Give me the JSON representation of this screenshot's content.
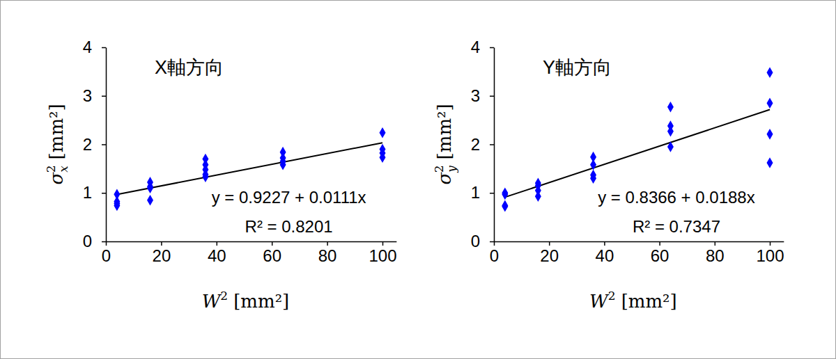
{
  "chart_data": [
    {
      "type": "scatter",
      "title": "X軸方向",
      "xlabel": {
        "symbol": "W",
        "sup": "2",
        "unit": "[mm²]"
      },
      "ylabel": {
        "symbol": "σ",
        "sub": "x",
        "sup": "2",
        "unit": "[mm²]"
      },
      "x": [
        4,
        4,
        4,
        4,
        16,
        16,
        16,
        16,
        36,
        36,
        36,
        36,
        36,
        64,
        64,
        64,
        64,
        100,
        100,
        100,
        100
      ],
      "series": [
        {
          "color": "#0000ff",
          "marker": "diamond",
          "values": [
            0.97,
            0.82,
            0.78,
            0.74,
            1.22,
            1.13,
            1.1,
            0.85,
            1.7,
            1.58,
            1.48,
            1.38,
            1.33,
            1.84,
            1.72,
            1.65,
            1.58,
            2.24,
            1.9,
            1.82,
            1.73
          ]
        }
      ],
      "fit": {
        "intercept": 0.9227,
        "slope": 0.0111,
        "x": [
          4,
          100
        ],
        "color": "#000000"
      },
      "annotations": [
        "y = 0.9227 + 0.0111x",
        "R² = 0.8201"
      ],
      "xlim": [
        0,
        105
      ],
      "ylim": [
        0,
        4
      ],
      "xticks": [
        0,
        20,
        40,
        60,
        80,
        100
      ],
      "yticks": [
        0,
        1,
        2,
        3,
        4
      ]
    },
    {
      "type": "scatter",
      "title": "Y軸方向",
      "xlabel": {
        "symbol": "W",
        "sup": "2",
        "unit": "[mm²]"
      },
      "ylabel": {
        "symbol": "σ",
        "sub": "y",
        "sup": "2",
        "unit": "[mm²]"
      },
      "x": [
        4,
        4,
        4,
        4,
        16,
        16,
        16,
        16,
        36,
        36,
        36,
        36,
        64,
        64,
        64,
        64,
        100,
        100,
        100,
        100
      ],
      "series": [
        {
          "color": "#0000ff",
          "marker": "diamond",
          "values": [
            1.0,
            0.97,
            0.74,
            0.72,
            1.2,
            1.15,
            1.05,
            0.93,
            1.74,
            1.58,
            1.37,
            1.3,
            2.77,
            2.38,
            2.27,
            1.95,
            3.48,
            2.85,
            2.21,
            1.62
          ]
        }
      ],
      "fit": {
        "intercept": 0.8366,
        "slope": 0.0188,
        "x": [
          4,
          100
        ],
        "color": "#000000"
      },
      "annotations": [
        "y = 0.8366 + 0.0188x",
        "R² = 0.7347"
      ],
      "xlim": [
        0,
        105
      ],
      "ylim": [
        0,
        4
      ],
      "xticks": [
        0,
        20,
        40,
        60,
        80,
        100
      ],
      "yticks": [
        0,
        1,
        2,
        3,
        4
      ]
    }
  ]
}
